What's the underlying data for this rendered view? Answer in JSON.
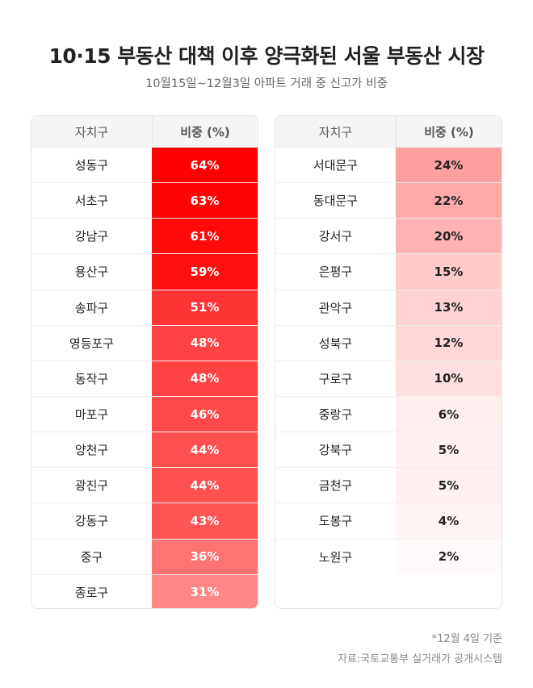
{
  "header": {
    "title": "10·15 부동산 대책 이후 양극화된 서울 부동산 시장",
    "subtitle": "10월15일~12월3일 아파트 거래 중 신고가 비중"
  },
  "tables": [
    {
      "columns": [
        "자치구",
        "비중 (%)"
      ],
      "text_color": "#ffffff",
      "rows": [
        {
          "district": "성동구",
          "share": "64%",
          "color": "#ff0000"
        },
        {
          "district": "서초구",
          "share": "63%",
          "color": "#ff0404"
        },
        {
          "district": "강남구",
          "share": "61%",
          "color": "#ff0909"
        },
        {
          "district": "용산구",
          "share": "59%",
          "color": "#ff1010"
        },
        {
          "district": "송파구",
          "share": "51%",
          "color": "#ff3333"
        },
        {
          "district": "영등포구",
          "share": "48%",
          "color": "#ff4242"
        },
        {
          "district": "동작구",
          "share": "48%",
          "color": "#ff4242"
        },
        {
          "district": "마포구",
          "share": "46%",
          "color": "#ff4949"
        },
        {
          "district": "양천구",
          "share": "44%",
          "color": "#ff5050"
        },
        {
          "district": "광진구",
          "share": "44%",
          "color": "#ff5050"
        },
        {
          "district": "강동구",
          "share": "43%",
          "color": "#ff5454"
        },
        {
          "district": "중구",
          "share": "36%",
          "color": "#ff7373"
        },
        {
          "district": "종로구",
          "share": "31%",
          "color": "#ff8787"
        }
      ]
    },
    {
      "columns": [
        "자치구",
        "비중 (%)"
      ],
      "text_color": "#222222",
      "rows": [
        {
          "district": "서대문구",
          "share": "24%",
          "color": "#ffa0a0"
        },
        {
          "district": "동대문구",
          "share": "22%",
          "color": "#ffa9a9"
        },
        {
          "district": "강서구",
          "share": "20%",
          "color": "#ffb3b3"
        },
        {
          "district": "은평구",
          "share": "15%",
          "color": "#ffcaca"
        },
        {
          "district": "관악구",
          "share": "13%",
          "color": "#ffd3d3"
        },
        {
          "district": "성북구",
          "share": "12%",
          "color": "#ffd7d7"
        },
        {
          "district": "구로구",
          "share": "10%",
          "color": "#ffe0e0"
        },
        {
          "district": "중랑구",
          "share": "6%",
          "color": "#ffeeee"
        },
        {
          "district": "강북구",
          "share": "5%",
          "color": "#fff1f1"
        },
        {
          "district": "금천구",
          "share": "5%",
          "color": "#fff1f1"
        },
        {
          "district": "도봉구",
          "share": "4%",
          "color": "#fff5f5"
        },
        {
          "district": "노원구",
          "share": "2%",
          "color": "#fffafa"
        }
      ]
    }
  ],
  "footer": {
    "note": "*12월 4일 기준",
    "source": "자료:국토교통부 실거래가 공개시스템"
  }
}
